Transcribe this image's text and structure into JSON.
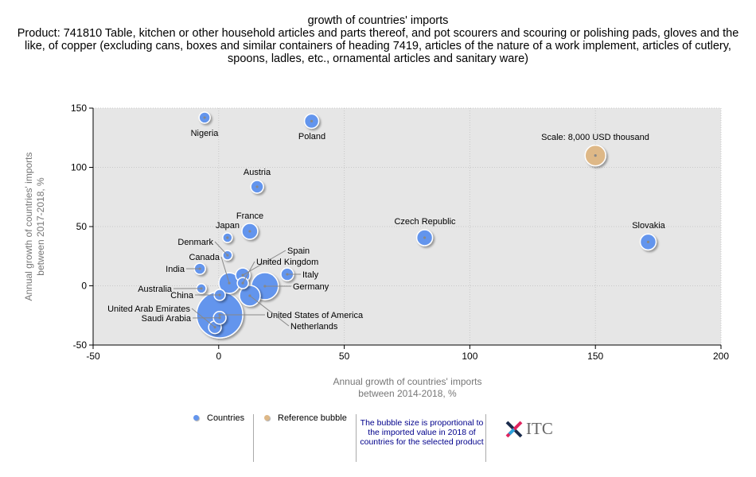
{
  "chart_data": {
    "type": "scatter",
    "title": "growth of countries' imports",
    "subtitle": "Product: 741810 Table, kitchen or other household articles and parts thereof, and pot scourers and scouring or polishing pads, gloves and the like, of copper (excluding cans, boxes and similar containers of heading 7419, articles of the nature of a work implement, articles of cutlery, spoons, ladles, etc., ornamental articles and sanitary ware)",
    "xlabel": "Annual growth of countries' imports between 2014-2018, %",
    "ylabel": "Annual growth of countries' imports between 2017-2018, %",
    "xlim": [
      -50,
      200
    ],
    "ylim": [
      -50,
      150
    ],
    "xticks": [
      "-50",
      "0",
      "50",
      "100",
      "150",
      "200"
    ],
    "yticks": [
      "150",
      "100",
      "50",
      "0",
      "-50"
    ],
    "grid": true,
    "colors": {
      "countries": "#6495ed",
      "reference": "#deb887",
      "plot_bg": "#e6e6e6"
    },
    "series": [
      {
        "name": "Countries",
        "points": [
          {
            "label": "Nigeria",
            "x": -5.6,
            "y": 142,
            "value": 2300
          },
          {
            "label": "Poland",
            "x": 37,
            "y": 139,
            "value": 3800
          },
          {
            "label": "Austria",
            "x": 15.3,
            "y": 83.6,
            "value": 3000
          },
          {
            "label": "France",
            "x": 12.4,
            "y": 46,
            "value": 4700
          },
          {
            "label": "Japan",
            "x": 3.5,
            "y": 40.6,
            "value": 1700
          },
          {
            "label": "Denmark",
            "x": 3.5,
            "y": 25.8,
            "value": 1700
          },
          {
            "label": "India",
            "x": -7.5,
            "y": 14.4,
            "value": 2300
          },
          {
            "label": "Czech Republic",
            "x": 82,
            "y": 40.6,
            "value": 4700
          },
          {
            "label": "Slovakia",
            "x": 171,
            "y": 37,
            "value": 4700
          },
          {
            "label": "Canada",
            "x": 4.2,
            "y": 2.3,
            "value": 8000
          },
          {
            "label": "Spain",
            "x": 9.6,
            "y": 9,
            "value": 3800
          },
          {
            "label": "United Kingdom",
            "x": 9.6,
            "y": 2.3,
            "value": 2300
          },
          {
            "label": "Italy",
            "x": 27.3,
            "y": 9.7,
            "value": 3000
          },
          {
            "label": "Germany",
            "x": 18.4,
            "y": -0.3,
            "value": 13700
          },
          {
            "label": "Australia",
            "x": -6.9,
            "y": -2.3,
            "value": 1700
          },
          {
            "label": "China",
            "x": 0.4,
            "y": -7.7,
            "value": 2300
          },
          {
            "label": "United States of America",
            "x": 0.4,
            "y": -24.5,
            "value": 40000
          },
          {
            "label": "Netherlands",
            "x": 12.4,
            "y": -8.4,
            "value": 8000
          },
          {
            "label": "United Arab Emirates",
            "x": -1.5,
            "y": -35,
            "value": 3000
          },
          {
            "label": "Saudi Arabia",
            "x": 0.4,
            "y": -27,
            "value": 3000
          }
        ]
      },
      {
        "name": "Reference bubble",
        "points": [
          {
            "label": "Scale: 8,000 USD thousand",
            "x": 150,
            "y": 110,
            "value": 8000
          }
        ]
      }
    ]
  },
  "legend": {
    "countries": "Countries",
    "reference": "Reference bubble",
    "note": "The bubble size is proportional to the imported value in 2018 of countries for the selected product"
  },
  "logo": "ITC"
}
